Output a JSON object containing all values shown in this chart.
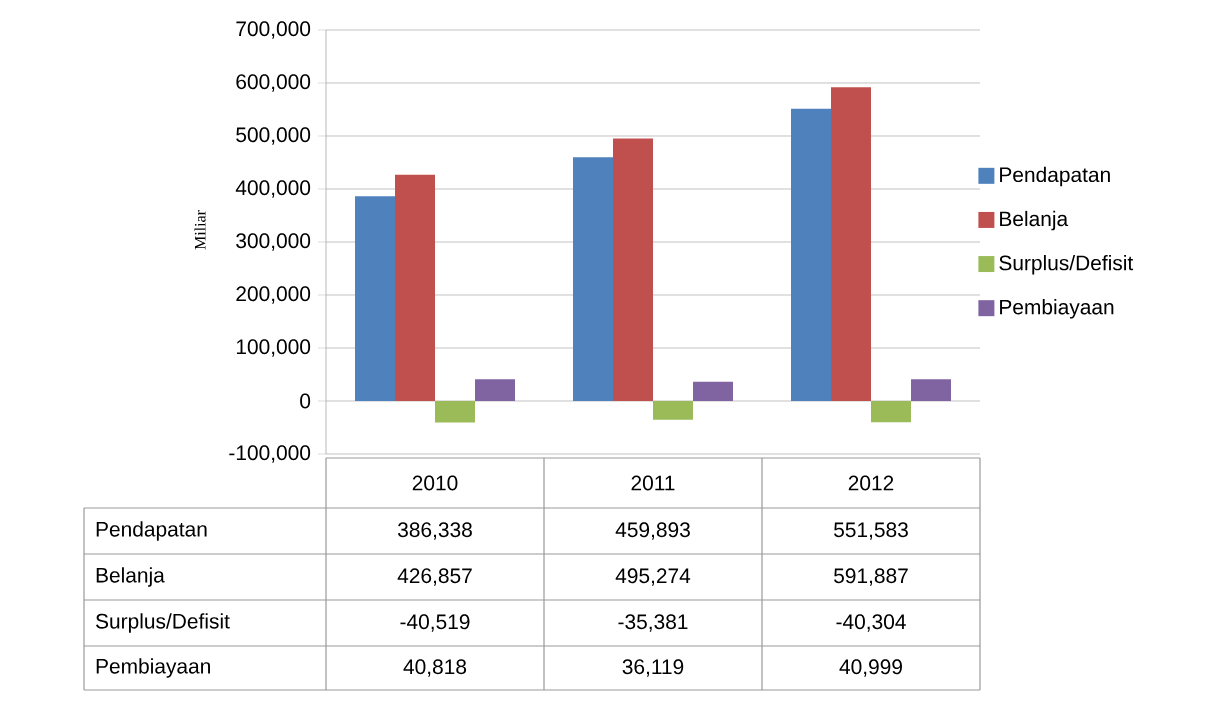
{
  "chart_data": {
    "type": "bar",
    "ylabel": "Miliar",
    "categories": [
      "2010",
      "2011",
      "2012"
    ],
    "series": [
      {
        "name": "Pendapatan",
        "color": "#4f81bd",
        "values": [
          386338,
          459893,
          551583
        ],
        "value_labels": [
          "386,338",
          "459,893",
          "551,583"
        ]
      },
      {
        "name": "Belanja",
        "color": "#c0504d",
        "values": [
          426857,
          495274,
          591887
        ],
        "value_labels": [
          "426,857",
          "495,274",
          "591,887"
        ]
      },
      {
        "name": "Surplus/Defisit",
        "color": "#9bbb59",
        "values": [
          -40519,
          -35381,
          -40304
        ],
        "value_labels": [
          "-40,519",
          "-35,381",
          "-40,304"
        ]
      },
      {
        "name": "Pembiayaan",
        "color": "#8064a2",
        "values": [
          40818,
          36119,
          40999
        ],
        "value_labels": [
          "40,818",
          "36,119",
          "40,999"
        ]
      }
    ],
    "ylim": [
      -100000,
      700000
    ],
    "yticks": [
      {
        "value": -100000,
        "label": "-100,000"
      },
      {
        "value": 0,
        "label": "0"
      },
      {
        "value": 100000,
        "label": "100,000"
      },
      {
        "value": 200000,
        "label": "200,000"
      },
      {
        "value": 300000,
        "label": "300,000"
      },
      {
        "value": 400000,
        "label": "400,000"
      },
      {
        "value": 500000,
        "label": "500,000"
      },
      {
        "value": 600000,
        "label": "600,000"
      },
      {
        "value": 700000,
        "label": "700,000"
      }
    ],
    "grid": "y",
    "legend": "right"
  }
}
